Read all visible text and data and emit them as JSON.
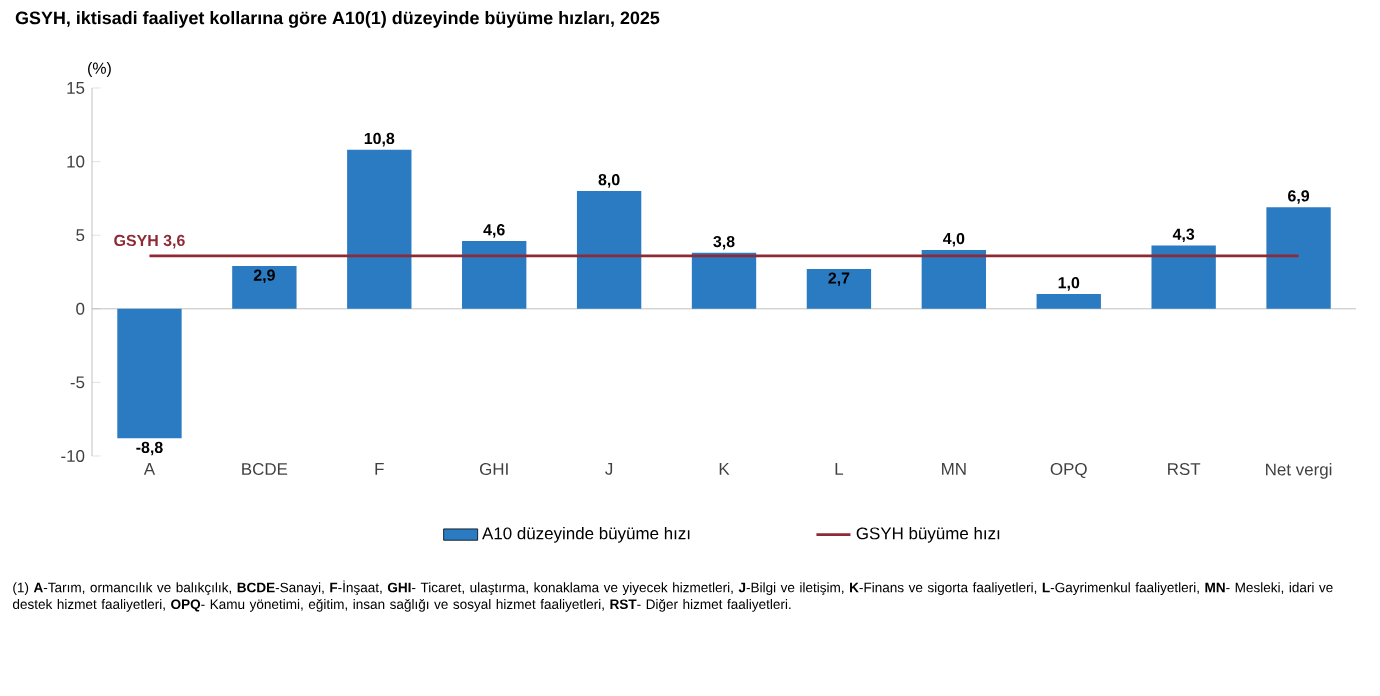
{
  "chart_data": {
    "type": "bar",
    "title": "GSYH, iktisadi faaliyet kollarına göre A10(1) düzeyinde büyüme hızları, 2025",
    "ylabel": "(%)",
    "categories": [
      "A",
      "BCDE",
      "F",
      "GHI",
      "J",
      "K",
      "L",
      "MN",
      "OPQ",
      "RST",
      "Net vergi"
    ],
    "series": [
      {
        "name": "A10 düzeyinde büyüme hızı",
        "color": "#2b7bc3",
        "values": [
          -8.8,
          2.9,
          10.8,
          4.6,
          8.0,
          3.8,
          2.7,
          4.0,
          1.0,
          4.3,
          6.9
        ],
        "value_labels": [
          "-8,8",
          "2,9",
          "10,8",
          "4,6",
          "8,0",
          "3,8",
          "2,7",
          "4,0",
          "1,0",
          "4,3",
          "6,9"
        ]
      },
      {
        "name": "GSYH büyüme hızı",
        "type": "line",
        "color": "#8e2a35",
        "values": [
          3.6,
          3.6,
          3.6,
          3.6,
          3.6,
          3.6,
          3.6,
          3.6,
          3.6,
          3.6,
          3.6
        ]
      }
    ],
    "ylim": [
      -10,
      15
    ],
    "yticks": [
      -10,
      -5,
      0,
      5,
      10,
      15
    ],
    "legend": "bottom",
    "annotations": [
      {
        "text": "GSYH 3,6",
        "x": "A",
        "y": 3.6
      },
      "(1) **A**-Tarım, ormancılık ve balıkçılık, **BCDE**-Sanayi, **F**-İnşaat, **GHI**- Ticaret, ulaştırma, konaklama ve yiyecek hizmetleri, **J**-Bilgi ve iletişim, **K**-Finans ve sigorta faaliyetleri, **L**-Gayrimenkul faaliyetleri, **MN**- Mesleki, idari ve destek hizmet faaliyetleri, **OPQ**- Kamu yönetimi, eğitim, insan sağlığı ve sosyal hizmet faaliyetleri, **RST**- Diğer hizmet faaliyetleri."
    ]
  }
}
